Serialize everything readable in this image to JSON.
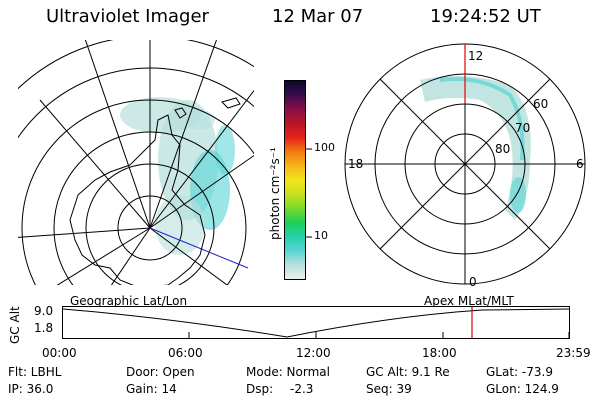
{
  "header": {
    "instrument": "Ultraviolet Imager",
    "date": "12 Mar 07",
    "time": "19:24:52 UT"
  },
  "colorbar": {
    "label": "photon cm⁻²s⁻¹",
    "ticks": [
      "100",
      "10"
    ],
    "colors": [
      "#e6f2ef",
      "#b8e0dc",
      "#56d4d6",
      "#26d0a8",
      "#1fcf54",
      "#7ad92a",
      "#c5e01f",
      "#f2e51c",
      "#f7b31a",
      "#f27a12",
      "#e5231a",
      "#b81524",
      "#8a0e4a",
      "#3a0b4e",
      "#0b0b2a"
    ]
  },
  "left_map": {
    "caption": "Geographic Lat/Lon"
  },
  "right_map": {
    "caption": "Apex  MLat/MLT",
    "mlt_labels": {
      "top": "12",
      "bottom": "0",
      "left": "18",
      "right": "6"
    },
    "lat_labels": [
      "60",
      "70",
      "80"
    ]
  },
  "timeline": {
    "y_axis_label": "GC Alt",
    "y_ticks": [
      "9.0",
      "1.8"
    ],
    "x_ticks": [
      "00:00",
      "06:00",
      "12:00",
      "18:00",
      "23:59"
    ],
    "current_marker_color": "#e00000"
  },
  "status": {
    "row1": {
      "flt": "Flt: LBHL",
      "door": "Door: Open",
      "mode": "Mode: Normal",
      "gcalt": "GC Alt: 9.1 Re",
      "glat": "GLat: -73.9"
    },
    "row2": {
      "ip": "IP: 36.0",
      "gain": "Gain: 14",
      "dsp_label": "Dsp:",
      "dsp_value": "-2.3",
      "seq": "Seq: 39",
      "glon": "GLon: 124.9"
    }
  }
}
